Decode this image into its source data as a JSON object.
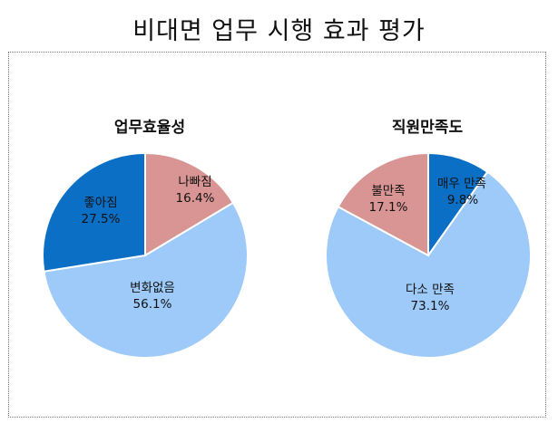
{
  "title": "비대면 업무 시행 효과 평가",
  "chart_data": [
    {
      "type": "pie",
      "title": "업무효율성",
      "slices": [
        {
          "label": "나빠짐",
          "value": 16.4,
          "value_text": "16.4%",
          "color": "#d99594"
        },
        {
          "label": "변화없음",
          "value": 56.1,
          "value_text": "56.1%",
          "color": "#9dcaf8"
        },
        {
          "label": "좋아짐",
          "value": 27.5,
          "value_text": "27.5%",
          "color": "#0b6fc6"
        }
      ]
    },
    {
      "type": "pie",
      "title": "직원만족도",
      "slices": [
        {
          "label": "매우 만족",
          "value": 9.8,
          "value_text": "9.8%",
          "color": "#0b6fc6"
        },
        {
          "label": "다소 만족",
          "value": 73.1,
          "value_text": "73.1%",
          "color": "#9dcaf8"
        },
        {
          "label": "불만족",
          "value": 17.1,
          "value_text": "17.1%",
          "color": "#d99594"
        }
      ]
    }
  ]
}
